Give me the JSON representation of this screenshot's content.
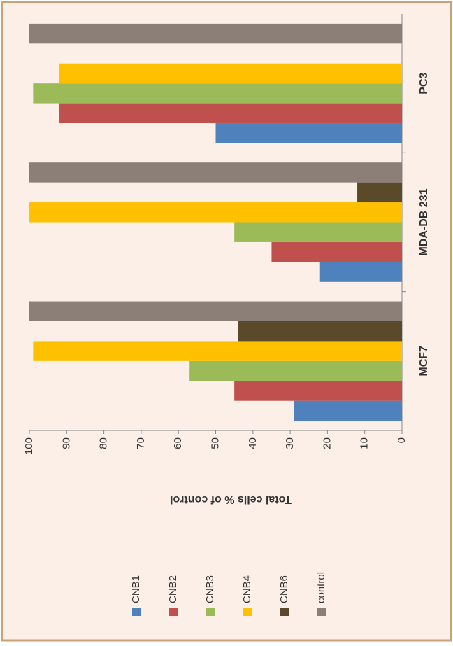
{
  "chart_data": {
    "type": "bar",
    "y_label": "Total cells % of control",
    "categories": [
      "MCF7",
      "MDA-DB 231",
      "PC3"
    ],
    "series": [
      {
        "name": "CNB1",
        "color": "#4f81bd",
        "values": [
          29,
          22,
          50
        ]
      },
      {
        "name": "CNB2",
        "color": "#c0504d",
        "values": [
          45,
          35,
          92
        ]
      },
      {
        "name": "CNB3",
        "color": "#9bbb59",
        "values": [
          57,
          45,
          99
        ]
      },
      {
        "name": "CNB4",
        "color": "#ffc000",
        "values": [
          99,
          100,
          92
        ]
      },
      {
        "name": "CNB6",
        "color": "#5a4a2a",
        "values": [
          44,
          12,
          null
        ]
      },
      {
        "name": "control",
        "color": "#8c7f78",
        "values": [
          100,
          100,
          100
        ]
      }
    ],
    "ylim": [
      0,
      100
    ],
    "yticks": [
      0,
      10,
      20,
      30,
      40,
      50,
      60,
      70,
      80,
      90,
      100
    ],
    "grid": false,
    "legend": "left"
  }
}
